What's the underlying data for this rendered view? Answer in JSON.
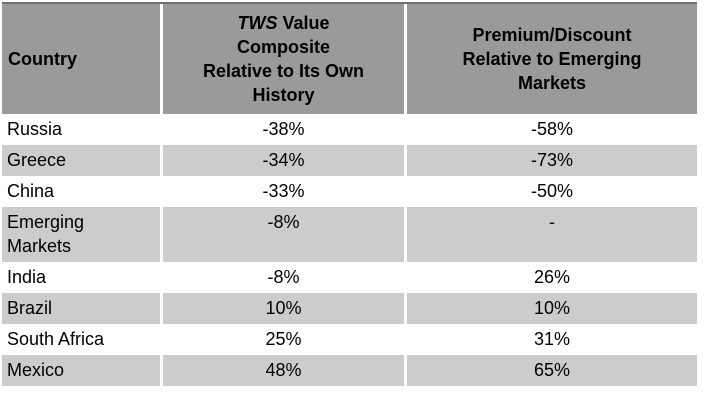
{
  "colors": {
    "header_bg": "#9a9a9a",
    "alt_row_bg": "#cccccc",
    "row_bg": "#ffffff",
    "text": "#000000",
    "divider": "#ffffff",
    "top_border": "#6e6e6e"
  },
  "header": {
    "col1": "Country",
    "col2": {
      "italic": "TWS",
      "after_italic": " Value",
      "lines_rest": [
        "Composite",
        "Relative to Its Own",
        "History"
      ]
    },
    "col3": "Premium/Discount Relative to Emerging Markets"
  },
  "chart_data": {
    "type": "table",
    "columns": [
      "Country",
      "TWS Value Composite Relative to Its Own History",
      "Premium/Discount Relative to Emerging Markets"
    ],
    "rows": [
      [
        "Russia",
        "-38%",
        "-58%"
      ],
      [
        "Greece",
        "-34%",
        "-73%"
      ],
      [
        "China",
        "-33%",
        "-50%"
      ],
      [
        "Emerging Markets",
        "-8%",
        "-"
      ],
      [
        "India",
        "-8%",
        "26%"
      ],
      [
        "Brazil",
        "10%",
        "10%"
      ],
      [
        "South Africa",
        "25%",
        "31%"
      ],
      [
        "Mexico",
        "48%",
        "65%"
      ]
    ]
  }
}
